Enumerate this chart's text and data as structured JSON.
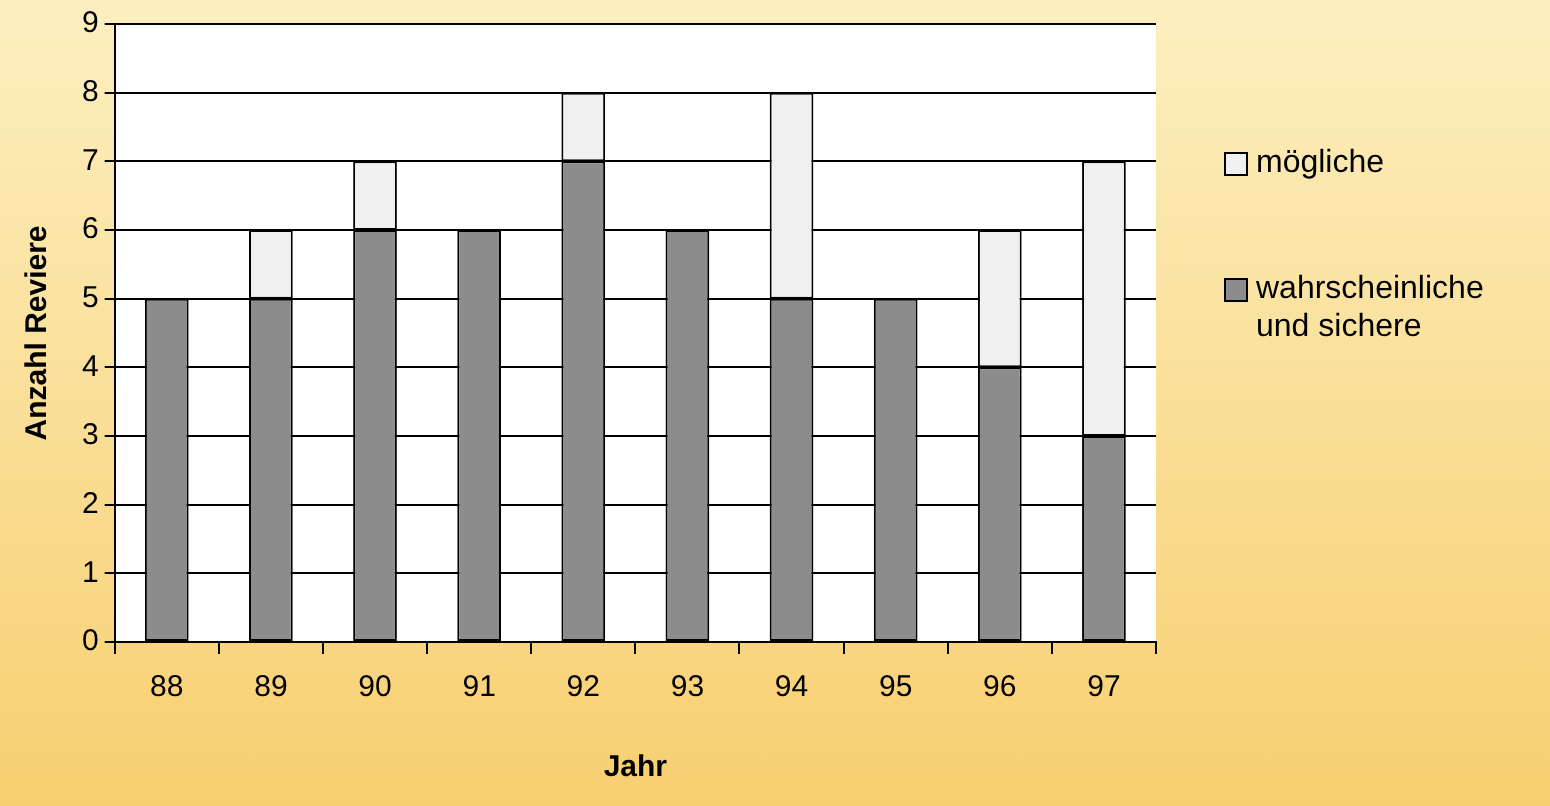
{
  "chart_data": {
    "type": "bar",
    "stacked": true,
    "xlabel": "Jahr",
    "ylabel": "Anzahl Reviere",
    "categories": [
      "88",
      "89",
      "90",
      "91",
      "92",
      "93",
      "94",
      "95",
      "96",
      "97"
    ],
    "series": [
      {
        "name": "wahrscheinliche und sichere",
        "color": "#8c8c8c",
        "values": [
          5,
          5,
          6,
          6,
          7,
          6,
          5,
          5,
          4,
          3
        ]
      },
      {
        "name": "mögliche",
        "color": "#f0f0f0",
        "values": [
          0,
          1,
          1,
          0,
          1,
          0,
          3,
          0,
          2,
          4
        ]
      }
    ],
    "ylim": [
      0,
      9
    ],
    "yticks": [
      0,
      1,
      2,
      3,
      4,
      5,
      6,
      7,
      8,
      9
    ],
    "grid": "y",
    "legend": "right"
  }
}
